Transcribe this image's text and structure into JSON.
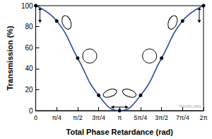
{
  "chart_data": {
    "type": "line",
    "x_label": "Total Phase Retardance (rad)",
    "y_label": "Transmission (%)",
    "x": [
      0,
      0.7854,
      1.5708,
      2.3562,
      3.1416,
      3.927,
      4.7124,
      5.4978,
      6.2832
    ],
    "values": [
      100,
      85.4,
      50,
      14.6,
      0,
      14.6,
      50,
      85.4,
      100
    ],
    "color": "#2f4f9f",
    "marker": "circle",
    "xlim": [
      0,
      6.2832
    ],
    "xticks": [
      0,
      {
        "value": 0.7854,
        "label": "π/4"
      },
      {
        "value": 1.5708,
        "label": "π/2"
      },
      {
        "value": 2.3562,
        "label": "3π/4"
      },
      {
        "value": 3.1416,
        "label": "π"
      },
      {
        "value": 3.927,
        "label": "5π/4"
      },
      {
        "value": 4.7124,
        "label": "3π/2"
      },
      {
        "value": 5.4978,
        "label": "7π/4"
      },
      {
        "value": 6.2832,
        "label": "2π"
      }
    ],
    "ylim": [
      0,
      100
    ],
    "yticks": [
      0,
      20,
      40,
      60,
      80,
      100
    ],
    "annotations": [
      "THORLABS"
    ],
    "grid": false
  }
}
